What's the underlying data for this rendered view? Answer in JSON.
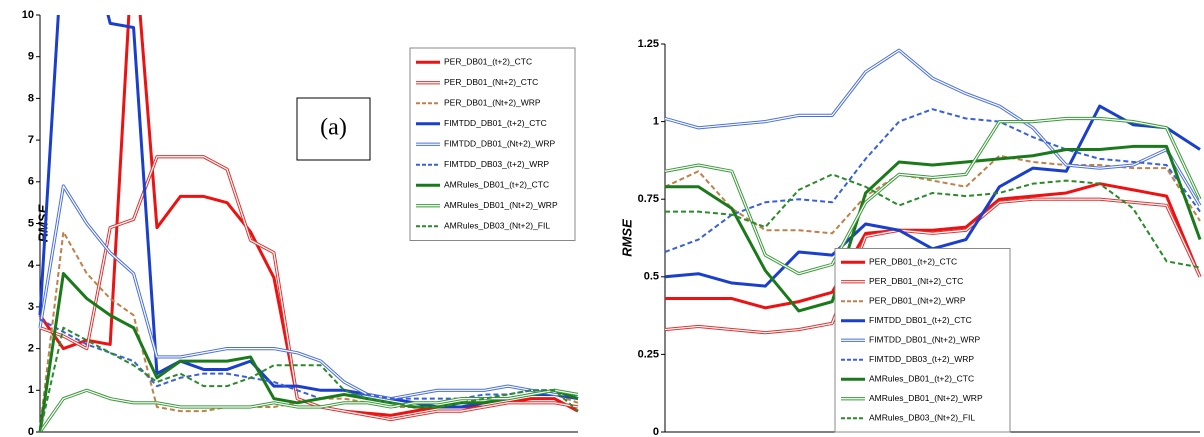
{
  "chart_data": [
    {
      "type": "line",
      "y_label": "RMSE",
      "annotation": "(a)",
      "legend": "top-right",
      "categories": [
        null,
        null,
        null,
        null,
        null,
        null,
        null,
        null,
        null,
        null,
        null,
        null,
        null,
        null,
        null,
        null,
        null,
        null,
        null,
        null,
        null,
        null,
        null,
        null
      ],
      "ylim": [
        0,
        10
      ],
      "yticks": [
        0,
        1,
        2,
        3,
        4,
        5,
        6,
        7,
        8,
        9,
        10
      ],
      "grid": false,
      "series": [
        {
          "name": "PER_DB01_(t+2)_CTC",
          "color": "#ee1111",
          "style": "solid",
          "values": [
            2.8,
            2.0,
            2.2,
            2.1,
            12,
            4.9,
            5.65,
            5.65,
            5.5,
            4.8,
            3.7,
            0.8,
            0.6,
            0.5,
            0.45,
            0.4,
            0.5,
            0.6,
            0.6,
            0.6,
            0.7,
            0.8,
            0.8,
            0.5
          ]
        },
        {
          "name": "PER_DB01_(Nt+2)_CTC",
          "color": "#dd3333",
          "style": "double",
          "values": [
            2.5,
            2.3,
            2.0,
            4.9,
            5.1,
            6.6,
            6.6,
            6.6,
            6.3,
            4.6,
            4.3,
            0.8,
            0.6,
            0.5,
            0.4,
            0.3,
            0.4,
            0.5,
            0.5,
            0.6,
            0.7,
            0.7,
            0.7,
            0.6
          ]
        },
        {
          "name": "PER_DB01_(Nt+2)_WRP",
          "color": "#c0804a",
          "style": "dashed",
          "values": [
            0.1,
            4.8,
            3.8,
            3.2,
            2.8,
            0.6,
            0.5,
            0.5,
            0.6,
            0.6,
            0.6,
            0.7,
            0.8,
            0.8,
            0.7,
            0.6,
            0.6,
            0.6,
            0.7,
            0.7,
            0.8,
            0.9,
            0.9,
            0.7
          ]
        },
        {
          "name": "FIMTDD_DB01_(t+2)_CTC",
          "color": "#1a3fcc",
          "style": "solid",
          "values": [
            2.8,
            12,
            12,
            9.8,
            9.7,
            1.4,
            1.7,
            1.5,
            1.5,
            1.7,
            1.1,
            1.1,
            1.0,
            1.0,
            0.9,
            0.8,
            0.7,
            0.6,
            0.6,
            0.7,
            0.8,
            0.9,
            0.9,
            0.8
          ]
        },
        {
          "name": "FIMTDD_DB01_(Nt+2)_WRP",
          "color": "#4a6fdd",
          "style": "double",
          "values": [
            2.5,
            5.9,
            5.0,
            4.3,
            3.8,
            1.8,
            1.8,
            1.9,
            2.0,
            2.0,
            2.0,
            1.9,
            1.7,
            1.2,
            0.9,
            0.8,
            0.9,
            1.0,
            1.0,
            1.0,
            1.1,
            1.0,
            0.9,
            0.9
          ]
        },
        {
          "name": "FIMTDD_DB03_(t+2)_WRP",
          "color": "#3a5fdd",
          "style": "dashed",
          "values": [
            2.7,
            2.4,
            2.1,
            1.9,
            1.7,
            1.1,
            1.3,
            1.4,
            1.4,
            1.3,
            1.2,
            1.0,
            0.8,
            0.9,
            0.9,
            0.8,
            0.8,
            0.8,
            0.8,
            0.9,
            0.9,
            1.0,
            1.0,
            0.9
          ]
        },
        {
          "name": "AMRules_DB01_(t+2)_CTC",
          "color": "#1a7a1a",
          "style": "solid",
          "values": [
            0,
            3.8,
            3.2,
            2.8,
            2.5,
            1.3,
            1.7,
            1.7,
            1.7,
            1.8,
            0.8,
            0.7,
            0.8,
            0.9,
            0.8,
            0.7,
            0.6,
            0.6,
            0.7,
            0.7,
            0.8,
            0.9,
            1.0,
            0.8
          ]
        },
        {
          "name": "AMRules_DB01_(Nt+2)_WRP",
          "color": "#3a9a3a",
          "style": "double",
          "values": [
            0,
            0.8,
            1.0,
            0.8,
            0.7,
            0.7,
            0.6,
            0.6,
            0.6,
            0.6,
            0.7,
            0.6,
            0.6,
            0.7,
            0.7,
            0.6,
            0.7,
            0.7,
            0.8,
            0.8,
            0.8,
            0.9,
            1.0,
            0.9
          ]
        },
        {
          "name": "AMRules_DB03_(Nt+2)_FIL",
          "color": "#2a8a2a",
          "style": "dashed",
          "values": [
            0,
            2.5,
            2.2,
            1.9,
            1.6,
            1.2,
            1.4,
            1.1,
            1.1,
            1.3,
            1.6,
            1.6,
            1.6,
            1.0,
            0.8,
            0.7,
            0.6,
            0.6,
            0.7,
            0.8,
            0.9,
            1.0,
            1.0,
            0.5
          ]
        }
      ]
    },
    {
      "type": "line",
      "y_label": "RMSE",
      "annotation": "(b)",
      "legend": "bottom-center",
      "categories": [
        null,
        null,
        null,
        null,
        null,
        null,
        null,
        null,
        null,
        null,
        null,
        null,
        null,
        null,
        null,
        null,
        null
      ],
      "ylim": [
        0,
        1.25
      ],
      "yticks": [
        0,
        0.25,
        0.5,
        0.75,
        1,
        1.25
      ],
      "grid": false,
      "series": [
        {
          "name": "PER_DB01_(t+2)_CTC",
          "color": "#ee1111",
          "style": "solid",
          "values": [
            0.43,
            0.43,
            0.43,
            0.4,
            0.42,
            0.45,
            0.64,
            0.65,
            0.65,
            0.66,
            0.75,
            0.76,
            0.77,
            0.8,
            0.78,
            0.76,
            0.5
          ]
        },
        {
          "name": "PER_DB01_(Nt+2)_CTC",
          "color": "#dd3333",
          "style": "double",
          "values": [
            0.33,
            0.34,
            0.33,
            0.32,
            0.33,
            0.35,
            0.63,
            0.65,
            0.64,
            0.65,
            0.74,
            0.75,
            0.75,
            0.75,
            0.74,
            0.73,
            0.5
          ]
        },
        {
          "name": "PER_DB01_(Nt+2)_WRP",
          "color": "#c0804a",
          "style": "dashed",
          "values": [
            0.79,
            0.84,
            0.72,
            0.65,
            0.65,
            0.64,
            0.76,
            0.83,
            0.81,
            0.79,
            0.89,
            0.87,
            0.86,
            0.86,
            0.85,
            0.85,
            0.68
          ]
        },
        {
          "name": "FIMTDD_DB01_(t+2)_CTC",
          "color": "#1a3fcc",
          "style": "solid",
          "values": [
            0.5,
            0.51,
            0.48,
            0.47,
            0.58,
            0.57,
            0.67,
            0.65,
            0.59,
            0.62,
            0.79,
            0.85,
            0.84,
            1.05,
            0.99,
            0.98,
            0.91
          ]
        },
        {
          "name": "FIMTDD_DB01_(Nt+2)_WRP",
          "color": "#4a6fdd",
          "style": "double",
          "values": [
            1.01,
            0.98,
            0.99,
            1.0,
            1.02,
            1.02,
            1.16,
            1.23,
            1.14,
            1.09,
            1.05,
            0.98,
            0.86,
            0.85,
            0.86,
            0.91,
            0.73
          ]
        },
        {
          "name": "FIMTDD_DB03_(t+2)_WRP",
          "color": "#3a5fdd",
          "style": "dashed",
          "values": [
            0.58,
            0.62,
            0.7,
            0.74,
            0.75,
            0.74,
            0.88,
            1.0,
            1.04,
            1.01,
            1.0,
            0.95,
            0.91,
            0.88,
            0.87,
            0.86,
            0.71
          ]
        },
        {
          "name": "AMRules_DB01_(t+2)_CTC",
          "color": "#1a7a1a",
          "style": "solid",
          "values": [
            0.79,
            0.79,
            0.72,
            0.52,
            0.39,
            0.42,
            0.77,
            0.87,
            0.86,
            0.87,
            0.88,
            0.89,
            0.91,
            0.91,
            0.92,
            0.92,
            0.62
          ]
        },
        {
          "name": "AMRules_DB01_(Nt+2)_WRP",
          "color": "#3a9a3a",
          "style": "double",
          "values": [
            0.84,
            0.86,
            0.84,
            0.57,
            0.51,
            0.54,
            0.74,
            0.83,
            0.82,
            0.83,
            1.0,
            1.0,
            1.01,
            1.01,
            1.0,
            0.98,
            0.75
          ]
        },
        {
          "name": "AMRules_DB03_(Nt+2)_FIL",
          "color": "#2a8a2a",
          "style": "dashed",
          "values": [
            0.71,
            0.71,
            0.7,
            0.66,
            0.78,
            0.83,
            0.79,
            0.73,
            0.77,
            0.76,
            0.77,
            0.8,
            0.81,
            0.8,
            0.72,
            0.55,
            0.53
          ]
        }
      ]
    }
  ]
}
